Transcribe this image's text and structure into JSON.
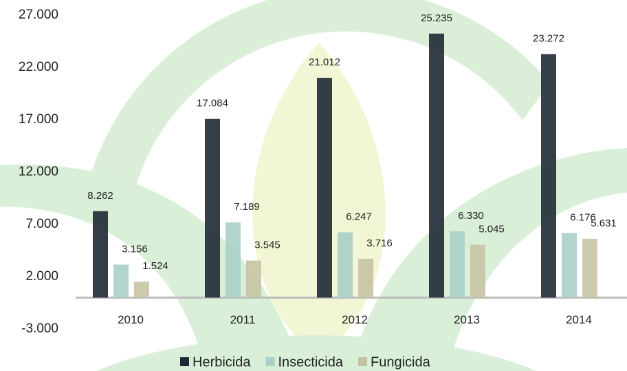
{
  "chart_data": {
    "type": "bar",
    "categories": [
      "2010",
      "2011",
      "2012",
      "2013",
      "2014"
    ],
    "series": [
      {
        "name": "Herbicida",
        "color": "#1f2935",
        "values": [
          8262,
          17084,
          21012,
          25235,
          23272
        ],
        "value_labels": [
          "8.262",
          "17.084",
          "21.012",
          "25.235",
          "23.272"
        ]
      },
      {
        "name": "Insecticida",
        "color": "#a9cfc6",
        "values": [
          3156,
          7189,
          6247,
          6330,
          6176
        ],
        "value_labels": [
          "3.156",
          "7.189",
          "6.247",
          "6.330",
          "6.176"
        ]
      },
      {
        "name": "Fungicida",
        "color": "#c6c3a4",
        "values": [
          1524,
          3545,
          3716,
          5045,
          5631
        ],
        "value_labels": [
          "1.524",
          "3.545",
          "3.716",
          "5.045",
          "5.631"
        ]
      }
    ],
    "ylim": [
      -3000,
      27000
    ],
    "yticks": [
      {
        "value": -3000,
        "label": "-3.000"
      },
      {
        "value": 2000,
        "label": "2.000"
      },
      {
        "value": 7000,
        "label": "7.000"
      },
      {
        "value": 12000,
        "label": "12.000"
      },
      {
        "value": 17000,
        "label": "17.000"
      },
      {
        "value": 22000,
        "label": "22.000"
      },
      {
        "value": 27000,
        "label": "27.000"
      }
    ],
    "grid": false,
    "legend": "bottom"
  }
}
